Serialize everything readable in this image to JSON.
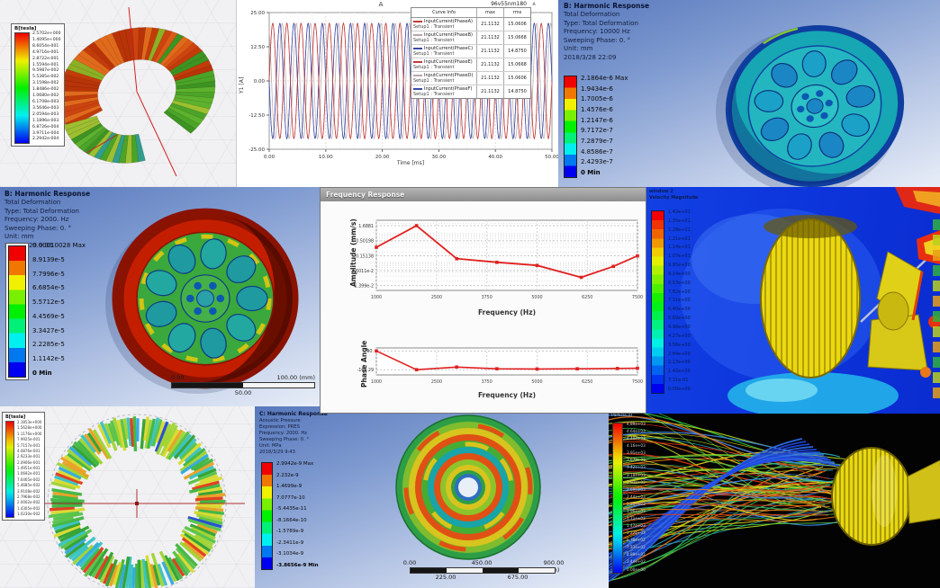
{
  "panels": {
    "maxwell_coil": {
      "legend_title": "B[tesla]",
      "legend_values": [
        "2.5702e+000",
        "1.4095e+000",
        "8.6054e-001",
        "4.9716e-001",
        "2.8722e-001",
        "1.5594e-001",
        "9.5987e-002",
        "5.5385e-002",
        "3.1598e-002",
        "1.8486e-002",
        "1.0680e-002",
        "6.1708e-003",
        "3.5646e-003",
        "2.0594e-003",
        "1.1896e-003",
        "6.8726e-004",
        "3.9711e-004",
        "2.2942e-004"
      ]
    },
    "current_plot": {
      "model_label": "96v55nm180",
      "marker_glyph": "▲",
      "table_headers": [
        "Curve Info",
        "max",
        "rms"
      ]
    },
    "harmonic_10000": {
      "title": "B: Harmonic Response",
      "lines": [
        "Total Deformation",
        "Type: Total Deformation",
        "Frequency: 10000 Hz",
        "Sweeping Phase: 0. °",
        "Unit: mm",
        "2018/3/28 22:09"
      ],
      "legend_values": [
        "2.1864e-6 Max",
        "1.9434e-6",
        "1.7005e-6",
        "1.4576e-6",
        "1.2147e-6",
        "9.7172e-7",
        "7.2879e-7",
        "4.8586e-7",
        "2.4293e-7",
        "0 Min"
      ]
    },
    "harmonic_2000": {
      "title": "B: Harmonic Response",
      "lines": [
        "Total Deformation",
        "Type: Total Deformation",
        "Frequency: 2000. Hz",
        "Sweeping Phase: 0. °",
        "Unit: mm",
        "2018/3/29 9:36"
      ],
      "legend_values": [
        "0.00010028 Max",
        "8.9139e-5",
        "7.7996e-5",
        "6.6854e-5",
        "5.5712e-5",
        "4.4569e-5",
        "3.3427e-5",
        "2.2285e-5",
        "1.1142e-5",
        "0 Min"
      ],
      "scale_left": "0.00",
      "scale_right": "100.00 (mm)",
      "scale_mid": "50.00"
    },
    "freq_response": {
      "window_title": "Frequency Response"
    },
    "cfd_velocity": {
      "legend_lines": [
        "window 2",
        "Velocity Magnitude"
      ],
      "legend_values": [
        "1.42e+01",
        "1.35e+01",
        "1.28e+01",
        "1.21e+01",
        "1.14e+01",
        "1.07e+01",
        "9.95e+00",
        "9.24e+00",
        "8.53e+00",
        "7.82e+00",
        "7.11e+00",
        "6.40e+00",
        "5.69e+00",
        "4.98e+00",
        "4.27e+00",
        "3.56e+00",
        "2.84e+00",
        "2.13e+00",
        "1.42e+00",
        "7.11e-01",
        "0.00e+00"
      ]
    },
    "rotor_field": {
      "legend_title": "B[tesla]",
      "legend_values": [
        "2.1853e+000",
        "1.5628e+000",
        "1.1176e+000",
        "7.9925e-001",
        "5.7157e-001",
        "4.0876e-001",
        "2.9233e-001",
        "2.0906e-001",
        "1.4951e-001",
        "1.0692e-001",
        "7.6465e-002",
        "5.4685e-002",
        "3.9108e-002",
        "2.7968e-002",
        "2.0002e-002",
        "1.4305e-002",
        "1.0230e-002"
      ]
    },
    "acoustic": {
      "title": "C: Harmonic Response",
      "lines": [
        "Acoustic Pressure",
        "Expression: PRES",
        "Frequency: 2000. Hz",
        "Sweeping Phase: 0. °",
        "Unit: MPa",
        "2018/3/29 9:43"
      ],
      "legend_values": [
        "2.9942e-9 Max",
        "2.232e-9",
        "1.4699e-9",
        "7.0777e-10",
        "-5.4435e-11",
        "-8.1664e-10",
        "-1.5789e-9",
        "-2.3411e-9",
        "-3.1034e-9",
        "-3.8656e-9 Min"
      ],
      "scale_top": [
        "0.00",
        "450.00",
        "900.00 (mm)"
      ],
      "scale_bottom": [
        "225.00",
        "675.00"
      ]
    },
    "streamlines": {
      "legend_lines": [
        "pathlines-1",
        "Particle ID"
      ],
      "legend_values": [
        "4.89e+03",
        "4.64e+03",
        "4.40e+03",
        "4.16e+03",
        "3.91e+03",
        "3.67e+03",
        "3.42e+03",
        "3.18e+03",
        "2.93e+03",
        "2.69e+03",
        "2.44e+03",
        "2.20e+03",
        "1.96e+03",
        "1.71e+03",
        "1.47e+03",
        "1.22e+03",
        "9.78e+02",
        "7.33e+02",
        "4.89e+02",
        "2.44e+02",
        "0.00e+00"
      ]
    }
  },
  "chart_data": [
    {
      "id": "input-currents",
      "type": "line",
      "title": "A",
      "xlabel": "Time [ms]",
      "ylabel": "Y1 [A]",
      "xlim": [
        0,
        50
      ],
      "ylim": [
        -25,
        25
      ],
      "xticks": [
        "0.00",
        "10.00",
        "20.00",
        "30.00",
        "40.00",
        "50.00"
      ],
      "yticks": [
        "25.00",
        "12.50",
        "0.00",
        "-12.50",
        "-25.00"
      ],
      "grid": true,
      "legend_position": "top-right",
      "waveform": {
        "kind": "sine",
        "amplitude": 21.1132,
        "period_ms": 2.5
      },
      "series": [
        {
          "name": "InputCurrent(PhaseA)",
          "setup": "Setup1 : Transient",
          "max": "21.1132",
          "rms": "15.0606",
          "phase_deg": 0,
          "color": "#c23b3b"
        },
        {
          "name": "InputCurrent(PhaseB)",
          "setup": "Setup1 : Transient",
          "max": "21.1132",
          "rms": "15.0668",
          "phase_deg": 120,
          "color": "#b9a6a6"
        },
        {
          "name": "InputCurrent(PhaseC)",
          "setup": "Setup1 : Transient",
          "max": "21.1132",
          "rms": "14.8750",
          "phase_deg": 180,
          "color": "#3c4ba8"
        },
        {
          "name": "InputCurrent(PhaseE)",
          "setup": "Setup1 : Transient",
          "max": "21.1132",
          "rms": "15.0668",
          "phase_deg": 0,
          "color": "#c23b3b"
        },
        {
          "name": "InputCurrent(PhaseD)",
          "setup": "Setup1 : Transient",
          "max": "21.1132",
          "rms": "15.0606",
          "phase_deg": 120,
          "color": "#b9a6a6"
        },
        {
          "name": "InputCurrent(PhaseF)",
          "setup": "Setup1 : Transient",
          "max": "21.1132",
          "rms": "14.8750",
          "phase_deg": 180,
          "color": "#3c4ba8"
        }
      ]
    },
    {
      "id": "amplitude-response",
      "type": "line",
      "xlabel": "Frequency (Hz)",
      "ylabel": "Amplitude (mm/s)",
      "yscale": "log",
      "xlim": [
        1000,
        7500
      ],
      "xticks": [
        "1000",
        "2500",
        "3750",
        "5000",
        "6250",
        "7500"
      ],
      "yticks": [
        "1.6881",
        "0.50198",
        "0.15138",
        "4.6011e-2",
        "1.399e-2"
      ],
      "x": [
        1000,
        2000,
        3000,
        4000,
        5000,
        6100,
        6900,
        7500
      ],
      "y": [
        0.3,
        1.6881,
        0.12,
        0.09,
        0.07,
        0.027,
        0.065,
        0.15
      ],
      "color": "#e02020",
      "marker": "square",
      "grid": true
    },
    {
      "id": "phase-response",
      "type": "line",
      "xlabel": "Frequency (Hz)",
      "ylabel": "Phase Angle",
      "xlim": [
        1000,
        7500
      ],
      "ylim": [
        -230,
        130
      ],
      "xticks": [
        "1000",
        "2500",
        "3750",
        "5000",
        "6250",
        "7500"
      ],
      "yticks": [
        "90.",
        "-160.29"
      ],
      "x": [
        1000,
        2000,
        3000,
        4000,
        5000,
        6000,
        7000,
        7500
      ],
      "y": [
        90,
        -160.29,
        -125,
        -148,
        -151,
        -148,
        -144,
        -141
      ],
      "color": "#e02020",
      "marker": "square",
      "grid": true
    }
  ]
}
